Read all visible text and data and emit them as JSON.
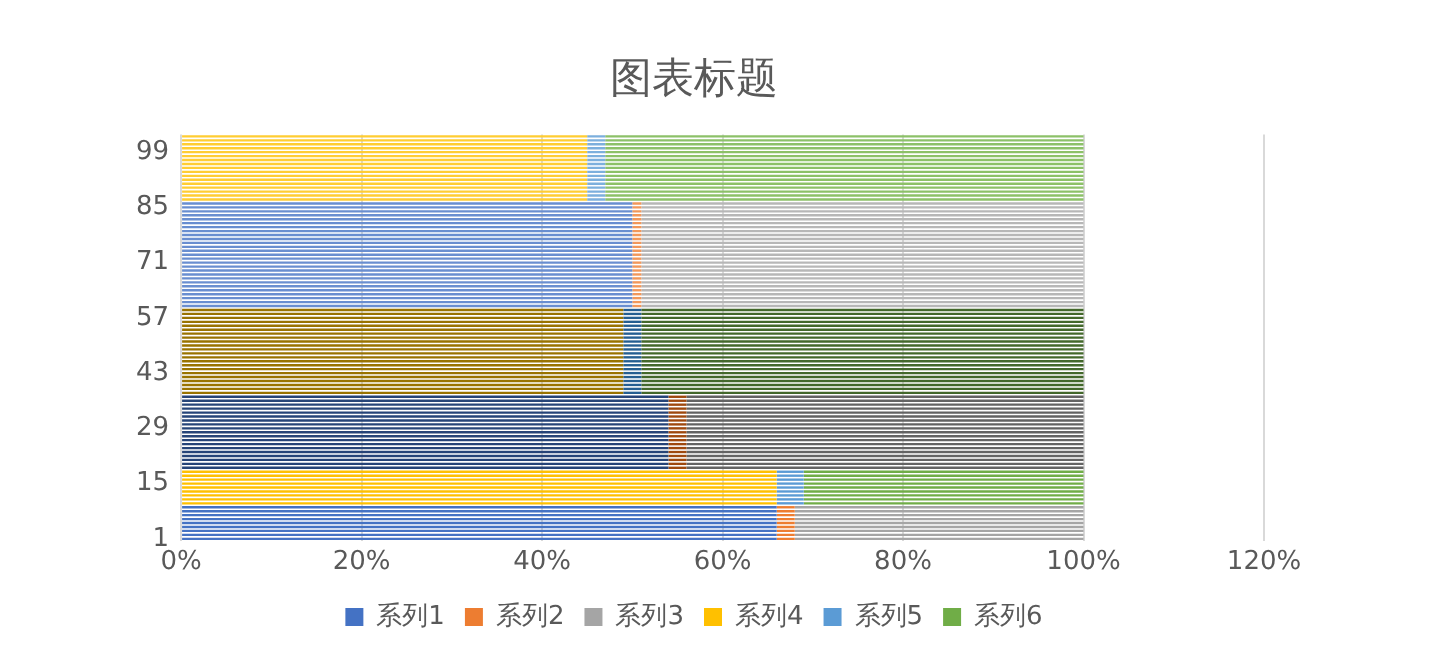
{
  "chart_data": {
    "type": "bar",
    "orientation": "horizontal",
    "stacked": true,
    "title": "图表标题",
    "categories": [
      null,
      null,
      null,
      null,
      "99",
      null,
      null,
      null,
      null,
      null,
      null,
      null,
      null,
      null,
      null,
      null,
      null,
      null,
      "85",
      null,
      null,
      null,
      null,
      null,
      null,
      null,
      null,
      null,
      null,
      null,
      null,
      null,
      "71",
      null,
      null,
      null,
      null,
      null,
      null,
      null,
      null,
      null,
      null,
      null,
      null,
      null,
      "57",
      null,
      null,
      null,
      null,
      null,
      null,
      null,
      null,
      null,
      null,
      null,
      null,
      null,
      "43",
      null,
      null,
      null,
      null,
      null,
      null,
      null,
      null,
      null,
      null,
      null,
      null,
      null,
      "29",
      null,
      null,
      null,
      null,
      null,
      null,
      null,
      null,
      null,
      null,
      null,
      null,
      null,
      "15",
      null,
      null,
      null,
      null,
      null,
      null,
      null,
      null,
      null,
      null,
      null,
      null,
      null,
      "1"
    ],
    "xlim": [
      0,
      120
    ],
    "xticks": [
      {
        "value": 0,
        "label": "0%"
      },
      {
        "value": 20,
        "label": "20%"
      },
      {
        "value": 40,
        "label": "40%"
      },
      {
        "value": 60,
        "label": "60%"
      },
      {
        "value": 80,
        "label": "80%"
      },
      {
        "value": 100,
        "label": "100%"
      },
      {
        "value": 120,
        "label": "120%"
      }
    ],
    "grid": "x",
    "legend": "bottom",
    "series": [
      {
        "name": "系列1",
        "color": "#4472c4",
        "values": [
          null,
          null,
          null,
          null,
          null,
          null,
          null,
          null,
          null,
          null,
          null,
          null,
          null,
          null,
          null,
          null,
          null,
          null,
          null,
          null,
          null,
          null,
          null,
          null,
          null,
          null,
          null,
          null,
          null,
          null,
          null,
          null,
          null,
          null,
          null,
          null,
          null,
          null,
          null,
          null,
          null,
          null,
          null,
          null,
          null,
          null,
          null,
          null,
          null,
          null,
          null,
          null,
          null,
          null,
          null,
          null,
          null,
          null,
          null,
          null,
          null,
          null,
          null,
          null,
          null,
          null,
          null,
          null,
          null,
          null,
          null,
          null,
          null,
          null,
          null,
          null,
          null,
          null,
          null,
          null,
          null,
          null,
          null,
          null,
          null,
          null,
          null,
          null,
          null,
          null,
          null,
          null,
          null,
          null,
          66,
          66,
          66,
          66,
          66,
          66,
          66,
          66,
          66
        ]
      },
      {
        "name": "系列2",
        "color": "#ed7d31",
        "values": [
          null,
          null,
          null,
          null,
          null,
          null,
          null,
          null,
          null,
          null,
          null,
          null,
          null,
          null,
          null,
          null,
          null,
          null,
          null,
          null,
          null,
          null,
          null,
          null,
          null,
          null,
          null,
          null,
          null,
          null,
          null,
          null,
          null,
          null,
          null,
          null,
          null,
          null,
          null,
          null,
          null,
          null,
          null,
          null,
          null,
          null,
          null,
          null,
          null,
          null,
          null,
          null,
          null,
          null,
          null,
          null,
          null,
          null,
          null,
          null,
          null,
          null,
          null,
          null,
          null,
          null,
          null,
          null,
          null,
          null,
          null,
          null,
          null,
          null,
          null,
          null,
          null,
          null,
          null,
          null,
          null,
          null,
          null,
          null,
          null,
          null,
          null,
          null,
          null,
          null,
          null,
          null,
          null,
          null,
          2,
          2,
          2,
          2,
          2,
          2,
          2,
          2,
          2
        ]
      },
      {
        "name": "系列3",
        "color": "#a5a5a5",
        "values": [
          null,
          null,
          null,
          null,
          null,
          null,
          null,
          null,
          null,
          null,
          null,
          null,
          null,
          null,
          null,
          null,
          null,
          null,
          null,
          null,
          null,
          null,
          null,
          null,
          null,
          null,
          null,
          null,
          null,
          null,
          null,
          null,
          null,
          null,
          null,
          null,
          null,
          null,
          null,
          null,
          null,
          null,
          null,
          null,
          null,
          null,
          null,
          null,
          null,
          null,
          null,
          null,
          null,
          null,
          null,
          null,
          null,
          null,
          null,
          null,
          null,
          null,
          null,
          null,
          null,
          null,
          null,
          null,
          null,
          null,
          null,
          null,
          null,
          null,
          null,
          null,
          null,
          null,
          null,
          null,
          null,
          null,
          null,
          null,
          null,
          null,
          null,
          null,
          null,
          null,
          null,
          null,
          null,
          null,
          32,
          32,
          32,
          32,
          32,
          32,
          32,
          32,
          32
        ]
      },
      {
        "name": "系列4",
        "color": "#ffc000",
        "values": [
          null,
          null,
          null,
          null,
          null,
          null,
          null,
          null,
          null,
          null,
          null,
          null,
          null,
          null,
          null,
          null,
          null,
          null,
          null,
          null,
          null,
          null,
          null,
          null,
          null,
          null,
          null,
          null,
          null,
          null,
          null,
          null,
          null,
          null,
          null,
          null,
          null,
          null,
          null,
          null,
          null,
          null,
          null,
          null,
          null,
          null,
          null,
          null,
          null,
          null,
          null,
          null,
          null,
          null,
          null,
          null,
          null,
          null,
          null,
          null,
          null,
          null,
          null,
          null,
          null,
          null,
          null,
          null,
          null,
          null,
          null,
          null,
          null,
          null,
          null,
          null,
          null,
          null,
          null,
          null,
          null,
          null,
          null,
          null,
          null,
          66,
          66,
          66,
          66,
          66,
          66,
          66,
          66,
          66,
          null,
          null,
          null,
          null,
          null,
          null,
          null,
          null,
          null
        ]
      },
      {
        "name": "系列5",
        "color": "#5b9bd5",
        "values": [
          null,
          null,
          null,
          null,
          null,
          null,
          null,
          null,
          null,
          null,
          null,
          null,
          null,
          null,
          null,
          null,
          null,
          null,
          null,
          null,
          null,
          null,
          null,
          null,
          null,
          null,
          null,
          null,
          null,
          null,
          null,
          null,
          null,
          null,
          null,
          null,
          null,
          null,
          null,
          null,
          null,
          null,
          null,
          null,
          null,
          null,
          null,
          null,
          null,
          null,
          null,
          null,
          null,
          null,
          null,
          null,
          null,
          null,
          null,
          null,
          null,
          null,
          null,
          null,
          null,
          null,
          null,
          null,
          null,
          null,
          null,
          null,
          null,
          null,
          null,
          null,
          null,
          null,
          null,
          null,
          null,
          null,
          null,
          null,
          null,
          3,
          3,
          3,
          3,
          3,
          3,
          3,
          3,
          3,
          null,
          null,
          null,
          null,
          null,
          null,
          null,
          null,
          null
        ]
      },
      {
        "name": "系列6",
        "color": "#70ad47",
        "values": [
          null,
          null,
          null,
          null,
          null,
          null,
          null,
          null,
          null,
          null,
          null,
          null,
          null,
          null,
          null,
          null,
          null,
          null,
          null,
          null,
          null,
          null,
          null,
          null,
          null,
          null,
          null,
          null,
          null,
          null,
          null,
          null,
          null,
          null,
          null,
          null,
          null,
          null,
          null,
          null,
          null,
          null,
          null,
          null,
          null,
          null,
          null,
          null,
          null,
          null,
          null,
          null,
          null,
          null,
          null,
          null,
          null,
          null,
          null,
          null,
          null,
          null,
          null,
          null,
          null,
          null,
          null,
          null,
          null,
          null,
          null,
          null,
          null,
          null,
          null,
          null,
          null,
          null,
          null,
          null,
          null,
          null,
          null,
          null,
          null,
          31,
          31,
          31,
          31,
          31,
          31,
          31,
          31,
          31,
          null,
          null,
          null,
          null,
          null,
          null,
          null,
          null,
          null
        ]
      },
      {
        "color": "#264478",
        "values": [
          null,
          null,
          null,
          null,
          null,
          null,
          null,
          null,
          null,
          null,
          null,
          null,
          null,
          null,
          null,
          null,
          null,
          null,
          null,
          null,
          null,
          null,
          null,
          null,
          null,
          null,
          null,
          null,
          null,
          null,
          null,
          null,
          null,
          null,
          null,
          null,
          null,
          null,
          null,
          null,
          null,
          null,
          null,
          null,
          null,
          null,
          null,
          null,
          null,
          null,
          null,
          null,
          null,
          null,
          null,
          null,
          null,
          null,
          null,
          null,
          null,
          null,
          null,
          null,
          null,
          null,
          54,
          54,
          54,
          54,
          54,
          54,
          54,
          54,
          54,
          54,
          54,
          54,
          54,
          54,
          54,
          54,
          54,
          54,
          54,
          null,
          null,
          null,
          null,
          null,
          null,
          null,
          null,
          null,
          null,
          null,
          null,
          null,
          null,
          null,
          null,
          null,
          null
        ]
      },
      {
        "color": "#9e480e",
        "values": [
          null,
          null,
          null,
          null,
          null,
          null,
          null,
          null,
          null,
          null,
          null,
          null,
          null,
          null,
          null,
          null,
          null,
          null,
          null,
          null,
          null,
          null,
          null,
          null,
          null,
          null,
          null,
          null,
          null,
          null,
          null,
          null,
          null,
          null,
          null,
          null,
          null,
          null,
          null,
          null,
          null,
          null,
          null,
          null,
          null,
          null,
          null,
          null,
          null,
          null,
          null,
          null,
          null,
          null,
          null,
          null,
          null,
          null,
          null,
          null,
          null,
          null,
          null,
          null,
          null,
          null,
          2,
          2,
          2,
          2,
          2,
          2,
          2,
          2,
          2,
          2,
          2,
          2,
          2,
          2,
          2,
          2,
          2,
          2,
          2,
          null,
          null,
          null,
          null,
          null,
          null,
          null,
          null,
          null,
          null,
          null,
          null,
          null,
          null,
          null,
          null,
          null,
          null
        ]
      },
      {
        "color": "#636363",
        "values": [
          null,
          null,
          null,
          null,
          null,
          null,
          null,
          null,
          null,
          null,
          null,
          null,
          null,
          null,
          null,
          null,
          null,
          null,
          null,
          null,
          null,
          null,
          null,
          null,
          null,
          null,
          null,
          null,
          null,
          null,
          null,
          null,
          null,
          null,
          null,
          null,
          null,
          null,
          null,
          null,
          null,
          null,
          null,
          null,
          null,
          null,
          null,
          null,
          null,
          null,
          null,
          null,
          null,
          null,
          null,
          null,
          null,
          null,
          null,
          null,
          null,
          null,
          null,
          null,
          null,
          null,
          44,
          44,
          44,
          44,
          44,
          44,
          44,
          44,
          44,
          44,
          44,
          44,
          44,
          44,
          44,
          44,
          44,
          44,
          44,
          null,
          null,
          null,
          null,
          null,
          null,
          null,
          null,
          null,
          null,
          null,
          null,
          null,
          null,
          null,
          null,
          null,
          null
        ]
      },
      {
        "color": "#997300",
        "values": [
          null,
          null,
          null,
          null,
          null,
          null,
          null,
          null,
          null,
          null,
          null,
          null,
          null,
          null,
          null,
          null,
          null,
          null,
          null,
          null,
          null,
          null,
          null,
          null,
          null,
          null,
          null,
          null,
          null,
          null,
          null,
          null,
          null,
          null,
          null,
          null,
          null,
          null,
          null,
          null,
          null,
          null,
          null,
          null,
          49,
          49,
          49,
          49,
          49,
          49,
          49,
          49,
          49,
          49,
          49,
          49,
          49,
          49,
          49,
          49,
          49,
          49,
          49,
          49,
          49,
          49,
          null,
          null,
          null,
          null,
          null,
          null,
          null,
          null,
          null,
          null,
          null,
          null,
          null,
          null,
          null,
          null,
          null,
          null,
          null,
          null,
          null,
          null,
          null,
          null,
          null,
          null,
          null,
          null,
          null,
          null,
          null,
          null,
          null,
          null,
          null,
          null,
          null
        ]
      },
      {
        "color": "#255e91",
        "values": [
          null,
          null,
          null,
          null,
          null,
          null,
          null,
          null,
          null,
          null,
          null,
          null,
          null,
          null,
          null,
          null,
          null,
          null,
          null,
          null,
          null,
          null,
          null,
          null,
          null,
          null,
          null,
          null,
          null,
          null,
          null,
          null,
          null,
          null,
          null,
          null,
          null,
          null,
          null,
          null,
          null,
          null,
          null,
          null,
          2,
          2,
          2,
          2,
          2,
          2,
          2,
          2,
          2,
          2,
          2,
          2,
          2,
          2,
          2,
          2,
          2,
          2,
          2,
          2,
          2,
          2,
          null,
          null,
          null,
          null,
          null,
          null,
          null,
          null,
          null,
          null,
          null,
          null,
          null,
          null,
          null,
          null,
          null,
          null,
          null,
          null,
          null,
          null,
          null,
          null,
          null,
          null,
          null,
          null,
          null,
          null,
          null,
          null,
          null,
          null,
          null,
          null,
          null
        ]
      },
      {
        "color": "#43682b",
        "values": [
          null,
          null,
          null,
          null,
          null,
          null,
          null,
          null,
          null,
          null,
          null,
          null,
          null,
          null,
          null,
          null,
          null,
          null,
          null,
          null,
          null,
          null,
          null,
          null,
          null,
          null,
          null,
          null,
          null,
          null,
          null,
          null,
          null,
          null,
          null,
          null,
          null,
          null,
          null,
          null,
          null,
          null,
          null,
          null,
          49,
          49,
          49,
          49,
          49,
          49,
          49,
          49,
          49,
          49,
          49,
          49,
          49,
          49,
          49,
          49,
          49,
          49,
          49,
          49,
          49,
          49,
          null,
          null,
          null,
          null,
          null,
          null,
          null,
          null,
          null,
          null,
          null,
          null,
          null,
          null,
          null,
          null,
          null,
          null,
          null,
          null,
          null,
          null,
          null,
          null,
          null,
          null,
          null,
          null,
          null,
          null,
          null,
          null,
          null,
          null,
          null,
          null,
          null
        ]
      },
      {
        "color": "#698ed0",
        "values": [
          null,
          null,
          null,
          null,
          null,
          null,
          null,
          null,
          null,
          null,
          null,
          null,
          null,
          null,
          null,
          null,
          null,
          50,
          50,
          50,
          50,
          50,
          50,
          50,
          50,
          50,
          50,
          50,
          50,
          50,
          50,
          50,
          50,
          50,
          50,
          50,
          50,
          50,
          50,
          50,
          50,
          50,
          50,
          50,
          null,
          null,
          null,
          null,
          null,
          null,
          null,
          null,
          null,
          null,
          null,
          null,
          null,
          null,
          null,
          null,
          null,
          null,
          null,
          null,
          null,
          null,
          null,
          null,
          null,
          null,
          null,
          null,
          null,
          null,
          null,
          null,
          null,
          null,
          null,
          null,
          null,
          null,
          null,
          null,
          null,
          null,
          null,
          null,
          null,
          null,
          null,
          null,
          null,
          null,
          null,
          null,
          null,
          null,
          null,
          null,
          null,
          null,
          null
        ]
      },
      {
        "color": "#f1975a",
        "values": [
          null,
          null,
          null,
          null,
          null,
          null,
          null,
          null,
          null,
          null,
          null,
          null,
          null,
          null,
          null,
          null,
          null,
          1,
          1,
          1,
          1,
          1,
          1,
          1,
          1,
          1,
          1,
          1,
          1,
          1,
          1,
          1,
          1,
          1,
          1,
          1,
          1,
          1,
          1,
          1,
          1,
          1,
          1,
          1,
          null,
          null,
          null,
          null,
          null,
          null,
          null,
          null,
          null,
          null,
          null,
          null,
          null,
          null,
          null,
          null,
          null,
          null,
          null,
          null,
          null,
          null,
          null,
          null,
          null,
          null,
          null,
          null,
          null,
          null,
          null,
          null,
          null,
          null,
          null,
          null,
          null,
          null,
          null,
          null,
          null,
          null,
          null,
          null,
          null,
          null,
          null,
          null,
          null,
          null,
          null,
          null,
          null,
          null,
          null,
          null,
          null,
          null,
          null
        ]
      },
      {
        "color": "#b7b7b7",
        "values": [
          null,
          null,
          null,
          null,
          null,
          null,
          null,
          null,
          null,
          null,
          null,
          null,
          null,
          null,
          null,
          null,
          null,
          49,
          49,
          49,
          49,
          49,
          49,
          49,
          49,
          49,
          49,
          49,
          49,
          49,
          49,
          49,
          49,
          49,
          49,
          49,
          49,
          49,
          49,
          49,
          49,
          49,
          49,
          49,
          null,
          null,
          null,
          null,
          null,
          null,
          null,
          null,
          null,
          null,
          null,
          null,
          null,
          null,
          null,
          null,
          null,
          null,
          null,
          null,
          null,
          null,
          null,
          null,
          null,
          null,
          null,
          null,
          null,
          null,
          null,
          null,
          null,
          null,
          null,
          null,
          null,
          null,
          null,
          null,
          null,
          null,
          null,
          null,
          null,
          null,
          null,
          null,
          null,
          null,
          null,
          null,
          null,
          null,
          null,
          null,
          null,
          null,
          null
        ]
      },
      {
        "color": "#ffcd33",
        "values": [
          45,
          45,
          45,
          45,
          45,
          45,
          45,
          45,
          45,
          45,
          45,
          45,
          45,
          45,
          45,
          45,
          45,
          null,
          null,
          null,
          null,
          null,
          null,
          null,
          null,
          null,
          null,
          null,
          null,
          null,
          null,
          null,
          null,
          null,
          null,
          null,
          null,
          null,
          null,
          null,
          null,
          null,
          null,
          null,
          null,
          null,
          null,
          null,
          null,
          null,
          null,
          null,
          null,
          null,
          null,
          null,
          null,
          null,
          null,
          null,
          null,
          null,
          null,
          null,
          null,
          null,
          null,
          null,
          null,
          null,
          null,
          null,
          null,
          null,
          null,
          null,
          null,
          null,
          null,
          null,
          null,
          null,
          null,
          null,
          null,
          null,
          null,
          null,
          null,
          null,
          null,
          null,
          null,
          null,
          null,
          null,
          null,
          null,
          null,
          null,
          null,
          null,
          null
        ]
      },
      {
        "color": "#7cafdd",
        "values": [
          2,
          2,
          2,
          2,
          2,
          2,
          2,
          2,
          2,
          2,
          2,
          2,
          2,
          2,
          2,
          2,
          2,
          null,
          null,
          null,
          null,
          null,
          null,
          null,
          null,
          null,
          null,
          null,
          null,
          null,
          null,
          null,
          null,
          null,
          null,
          null,
          null,
          null,
          null,
          null,
          null,
          null,
          null,
          null,
          null,
          null,
          null,
          null,
          null,
          null,
          null,
          null,
          null,
          null,
          null,
          null,
          null,
          null,
          null,
          null,
          null,
          null,
          null,
          null,
          null,
          null,
          null,
          null,
          null,
          null,
          null,
          null,
          null,
          null,
          null,
          null,
          null,
          null,
          null,
          null,
          null,
          null,
          null,
          null,
          null,
          null,
          null,
          null,
          null,
          null,
          null,
          null,
          null,
          null,
          null,
          null,
          null,
          null,
          null,
          null,
          null,
          null,
          null
        ]
      },
      {
        "color": "#8cc168",
        "values": [
          53,
          53,
          53,
          53,
          53,
          53,
          53,
          53,
          53,
          53,
          53,
          53,
          53,
          53,
          53,
          53,
          53,
          null,
          null,
          null,
          null,
          null,
          null,
          null,
          null,
          null,
          null,
          null,
          null,
          null,
          null,
          null,
          null,
          null,
          null,
          null,
          null,
          null,
          null,
          null,
          null,
          null,
          null,
          null,
          null,
          null,
          null,
          null,
          null,
          null,
          null,
          null,
          null,
          null,
          null,
          null,
          null,
          null,
          null,
          null,
          null,
          null,
          null,
          null,
          null,
          null,
          null,
          null,
          null,
          null,
          null,
          null,
          null,
          null,
          null,
          null,
          null,
          null,
          null,
          null,
          null,
          null,
          null,
          null,
          null,
          null,
          null,
          null,
          null,
          null,
          null,
          null,
          null,
          null,
          null,
          null,
          null,
          null,
          null,
          null,
          null,
          null,
          null
        ]
      }
    ]
  }
}
